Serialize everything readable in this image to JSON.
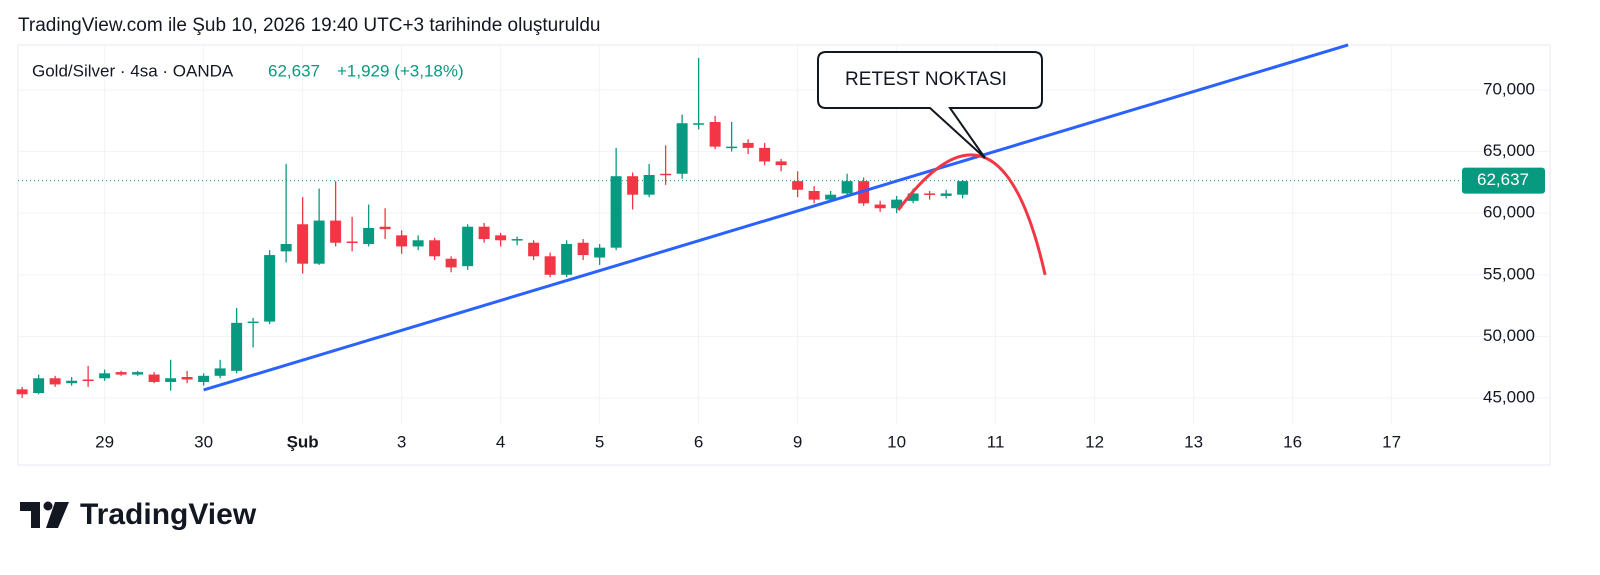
{
  "chart_data": {
    "type": "candlestick",
    "caption": "TradingView.com ile Şub 10, 2026 19:40 UTC+3 tarihinde oluşturuldu",
    "symbol": "Gold/Silver · 4sa · OANDA",
    "change": "+1,929 (+3,18%)",
    "last_price": {
      "value": 62637,
      "label": "62,637"
    },
    "brand": "TradingView",
    "up_color": "#089981",
    "down_color": "#f23645",
    "grid": true,
    "xlim": [
      -0.25,
      86.84
    ],
    "ylim": [
      39560,
      73650
    ],
    "xticks": [
      {
        "value": 5,
        "label": "29"
      },
      {
        "value": 11,
        "label": "30"
      },
      {
        "value": 17,
        "label": "Şub"
      },
      {
        "value": 23,
        "label": "3"
      },
      {
        "value": 29,
        "label": "4"
      },
      {
        "value": 35,
        "label": "5"
      },
      {
        "value": 41,
        "label": "6"
      },
      {
        "value": 47,
        "label": "9"
      },
      {
        "value": 53,
        "label": "10"
      },
      {
        "value": 59,
        "label": "11"
      },
      {
        "value": 65,
        "label": "12"
      },
      {
        "value": 71,
        "label": "13"
      },
      {
        "value": 77,
        "label": "16"
      },
      {
        "value": 83,
        "label": "17"
      }
    ],
    "yticks": [
      {
        "value": 45000,
        "label": "45,000"
      },
      {
        "value": 50000,
        "label": "50,000"
      },
      {
        "value": 55000,
        "label": "55,000"
      },
      {
        "value": 60000,
        "label": "60,000"
      },
      {
        "value": 65000,
        "label": "65,000"
      },
      {
        "value": 70000,
        "label": "70,000"
      }
    ],
    "open": [
      45700,
      45400,
      46600,
      46200,
      46500,
      46600,
      47100,
      46900,
      46900,
      46300,
      46700,
      46300,
      46800,
      47200,
      51100,
      51200,
      56900,
      59100,
      55900,
      59400,
      57700,
      57500,
      58900,
      58200,
      57300,
      57800,
      56300,
      55700,
      58900,
      58200,
      57800,
      57600,
      56500,
      55000,
      57600,
      56400,
      57200,
      63000,
      61500,
      63200,
      63200,
      67200,
      67400,
      65300,
      65700,
      65300,
      64200,
      62600,
      61800,
      61100,
      61600,
      62600,
      60700,
      60400,
      61000,
      61600,
      61400,
      61500
    ],
    "high": [
      45900,
      46900,
      46800,
      46700,
      47600,
      47300,
      47200,
      47200,
      47100,
      48100,
      47200,
      47000,
      48100,
      52300,
      51500,
      57000,
      64000,
      61300,
      62000,
      62600,
      59700,
      60700,
      60400,
      58600,
      58200,
      58000,
      56500,
      59100,
      59200,
      58400,
      58100,
      57800,
      56800,
      57800,
      57900,
      57500,
      65300,
      63300,
      64000,
      65500,
      68000,
      72600,
      67900,
      67400,
      66000,
      65700,
      64400,
      63400,
      62200,
      61800,
      63200,
      62900,
      61000,
      61400,
      62000,
      61800,
      61900,
      62700
    ],
    "low": [
      45000,
      45300,
      45900,
      46000,
      45900,
      46400,
      46800,
      46800,
      46200,
      45600,
      46200,
      46000,
      46600,
      47000,
      49100,
      51000,
      56000,
      55100,
      55800,
      57300,
      56900,
      57300,
      57900,
      56700,
      57000,
      56200,
      55200,
      55400,
      57600,
      57300,
      57400,
      56200,
      54800,
      54800,
      56200,
      55800,
      57000,
      60300,
      61300,
      62300,
      62800,
      66800,
      65200,
      65000,
      64800,
      63900,
      63400,
      61300,
      60800,
      60900,
      61300,
      60600,
      60100,
      60000,
      60800,
      61100,
      61200,
      61200
    ],
    "close": [
      45300,
      46600,
      46100,
      46400,
      46400,
      47000,
      46900,
      47100,
      46300,
      46600,
      46500,
      46800,
      47400,
      51100,
      51200,
      56600,
      57500,
      55900,
      59400,
      57600,
      57600,
      58800,
      58700,
      57300,
      57800,
      56500,
      55600,
      58900,
      57900,
      57800,
      57900,
      56500,
      55000,
      57500,
      56600,
      57200,
      63000,
      61500,
      63100,
      63100,
      67300,
      67300,
      65400,
      65400,
      65300,
      64200,
      63900,
      61900,
      61100,
      61500,
      62600,
      60800,
      60400,
      61100,
      61600,
      61500,
      61600,
      62600
    ],
    "trendline": {
      "color": "#2962ff",
      "x": [
        11,
        80.36
      ],
      "y": [
        45649,
        73653
      ]
    },
    "projection": {
      "color": "#f23645",
      "x": [
        53.1,
        58.4,
        62
      ],
      "y": [
        60260,
        64480,
        54984
      ]
    },
    "callout": "RETEST NOKTASI"
  }
}
